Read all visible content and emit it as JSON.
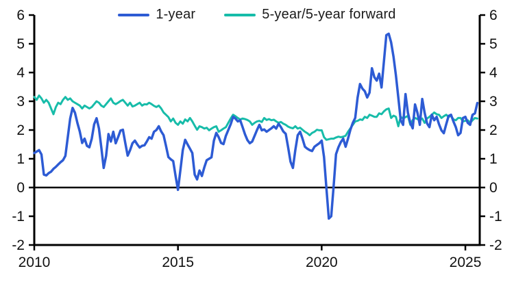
{
  "legend": {
    "series1_label": "1-year",
    "series2_label": "5-year/5-year forward"
  },
  "colors": {
    "series1": "#2d5bd4",
    "series2": "#17bca9",
    "axis": "#000000",
    "background": "#ffffff"
  },
  "chart_data": {
    "type": "line",
    "title": "",
    "xlabel": "",
    "ylabel": "",
    "grid": false,
    "legend_position": "top-center",
    "zero_line": true,
    "xlim": [
      2010,
      2025.5
    ],
    "ylim": [
      -2,
      6
    ],
    "x_ticks": [
      2010,
      2015,
      2020,
      2025
    ],
    "y_ticks": [
      -2,
      -1,
      0,
      1,
      2,
      3,
      4,
      5,
      6
    ],
    "y_axis_sides": [
      "left",
      "right"
    ],
    "x_start": 2010.0,
    "x_step_years": 0.0833333,
    "series": [
      {
        "name": "1-year",
        "color": "#2d5bd4",
        "values": [
          1.2,
          1.25,
          1.3,
          1.15,
          0.45,
          0.42,
          0.5,
          0.55,
          0.65,
          0.72,
          0.8,
          0.88,
          0.95,
          1.1,
          1.75,
          2.4,
          2.77,
          2.6,
          2.25,
          1.95,
          1.55,
          1.7,
          1.45,
          1.4,
          1.7,
          2.2,
          2.41,
          2.05,
          1.4,
          0.68,
          1.1,
          1.86,
          1.6,
          1.94,
          1.54,
          1.75,
          1.98,
          2.01,
          1.55,
          1.11,
          1.3,
          1.54,
          1.63,
          1.5,
          1.39,
          1.45,
          1.47,
          1.6,
          1.75,
          1.7,
          1.94,
          2.0,
          2.13,
          1.95,
          1.82,
          1.45,
          1.06,
          0.98,
          0.92,
          0.4,
          -0.08,
          0.6,
          1.3,
          1.66,
          1.5,
          1.35,
          1.2,
          0.45,
          0.28,
          0.59,
          0.4,
          0.7,
          0.95,
          1.0,
          1.05,
          1.63,
          1.9,
          1.75,
          1.55,
          1.51,
          1.8,
          2.0,
          2.2,
          2.46,
          2.4,
          2.3,
          2.34,
          2.1,
          1.85,
          1.65,
          1.54,
          1.6,
          1.8,
          2.0,
          2.18,
          1.99,
          2.02,
          1.94,
          2.0,
          2.06,
          2.13,
          2.05,
          2.22,
          2.1,
          1.95,
          1.87,
          1.4,
          0.9,
          0.68,
          1.3,
          1.82,
          1.94,
          1.7,
          1.42,
          1.35,
          1.3,
          1.27,
          1.42,
          1.48,
          1.54,
          1.63,
          1.06,
          -0.03,
          -1.08,
          -1.0,
          0.04,
          1.16,
          1.4,
          1.58,
          1.7,
          1.42,
          1.7,
          2.01,
          2.25,
          2.42,
          3.13,
          3.6,
          3.44,
          3.35,
          3.13,
          3.3,
          4.15,
          3.84,
          3.72,
          3.96,
          3.48,
          4.39,
          5.3,
          5.35,
          5.05,
          4.55,
          3.9,
          3.13,
          2.34,
          2.18,
          3.25,
          2.6,
          2.25,
          2.06,
          2.89,
          2.6,
          2.18,
          3.08,
          2.6,
          2.23,
          2.1,
          2.53,
          2.34,
          2.46,
          2.2,
          1.99,
          1.89,
          2.2,
          2.49,
          2.53,
          2.3,
          2.1,
          1.82,
          1.9,
          2.42,
          2.46,
          2.25,
          2.18,
          2.53,
          2.58,
          2.94
        ]
      },
      {
        "name": "5-year/5-year forward",
        "color": "#17bca9",
        "values": [
          3.15,
          3.05,
          3.2,
          3.1,
          2.95,
          3.05,
          2.95,
          2.75,
          2.55,
          2.8,
          2.95,
          2.9,
          3.05,
          3.15,
          3.05,
          3.1,
          3.0,
          2.95,
          2.9,
          2.85,
          2.75,
          2.85,
          2.8,
          2.75,
          2.8,
          2.9,
          3.0,
          2.95,
          2.85,
          2.8,
          2.9,
          3.0,
          3.1,
          2.95,
          2.9,
          2.95,
          3.01,
          3.05,
          2.95,
          2.85,
          2.95,
          2.82,
          2.85,
          2.9,
          2.95,
          2.85,
          2.9,
          2.89,
          2.95,
          2.9,
          2.84,
          2.8,
          2.85,
          2.75,
          2.61,
          2.53,
          2.45,
          2.3,
          2.4,
          2.25,
          2.18,
          2.3,
          2.22,
          2.37,
          2.3,
          2.42,
          2.3,
          2.15,
          2.01,
          2.13,
          2.1,
          2.05,
          2.08,
          1.99,
          2.05,
          2.1,
          2.13,
          1.94,
          1.99,
          2.05,
          2.1,
          2.25,
          2.4,
          2.53,
          2.48,
          2.42,
          2.37,
          2.4,
          2.38,
          2.35,
          2.3,
          2.18,
          2.25,
          2.3,
          2.32,
          2.28,
          2.42,
          2.35,
          2.38,
          2.34,
          2.36,
          2.3,
          2.25,
          2.28,
          2.22,
          2.18,
          2.12,
          2.08,
          2.06,
          2.13,
          2.05,
          2.08,
          2.01,
          1.94,
          1.89,
          1.82,
          1.9,
          1.94,
          2.01,
          1.99,
          1.99,
          1.75,
          1.66,
          1.68,
          1.7,
          1.7,
          1.74,
          1.77,
          1.75,
          1.77,
          1.8,
          1.94,
          2.06,
          2.18,
          2.3,
          2.32,
          2.37,
          2.35,
          2.46,
          2.42,
          2.53,
          2.5,
          2.46,
          2.46,
          2.58,
          2.55,
          2.65,
          2.72,
          2.75,
          2.42,
          2.5,
          2.46,
          2.13,
          2.46,
          2.4,
          2.45,
          2.49,
          2.18,
          2.35,
          2.42,
          2.38,
          2.34,
          2.4,
          2.25,
          2.4,
          2.46,
          2.53,
          2.61,
          2.55,
          2.53,
          2.42,
          2.48,
          2.53,
          2.46,
          2.49,
          2.37,
          2.34,
          2.42,
          2.42,
          2.3,
          2.32,
          2.34,
          2.25,
          2.34,
          2.42,
          2.4
        ]
      }
    ]
  }
}
